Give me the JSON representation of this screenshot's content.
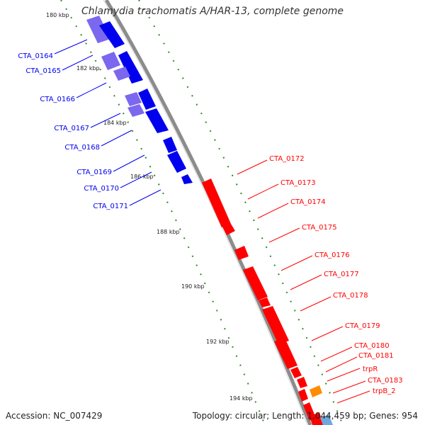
{
  "title": "Chlamydia trachomatis A/HAR-13, complete genome",
  "footer": {
    "accession": "Accession: NC_007429",
    "summary": "Topology: circular; Length: 1,044,459 bp; Genes: 954"
  },
  "colors": {
    "backbone": "#8c8c8c",
    "tick": "#2e8b22",
    "reverse_gene": "#0000ee",
    "reverse_gene_light": "#7b68ee",
    "forward_gene": "#ff0000",
    "forward_gene_orange": "#ff8c00",
    "forward_gene_blue": "#6fa8dc"
  },
  "scale_labels": [
    "180 kbp",
    "182 kbp",
    "184 kbp",
    "186 kbp",
    "188 kbp",
    "190 kbp",
    "192 kbp",
    "194 kbp"
  ],
  "reverse_labels": [
    "CTA_0164",
    "CTA_0165",
    "CTA_0166",
    "CTA_0167",
    "CTA_0168",
    "CTA_0169",
    "CTA_0170",
    "CTA_0171"
  ],
  "forward_labels": [
    "CTA_0172",
    "CTA_0173",
    "CTA_0174",
    "CTA_0175",
    "CTA_0176",
    "CTA_0177",
    "CTA_0178",
    "CTA_0179",
    "CTA_0180",
    "CTA_0181",
    "trpR",
    "CTA_0183",
    "trpB_2"
  ]
}
